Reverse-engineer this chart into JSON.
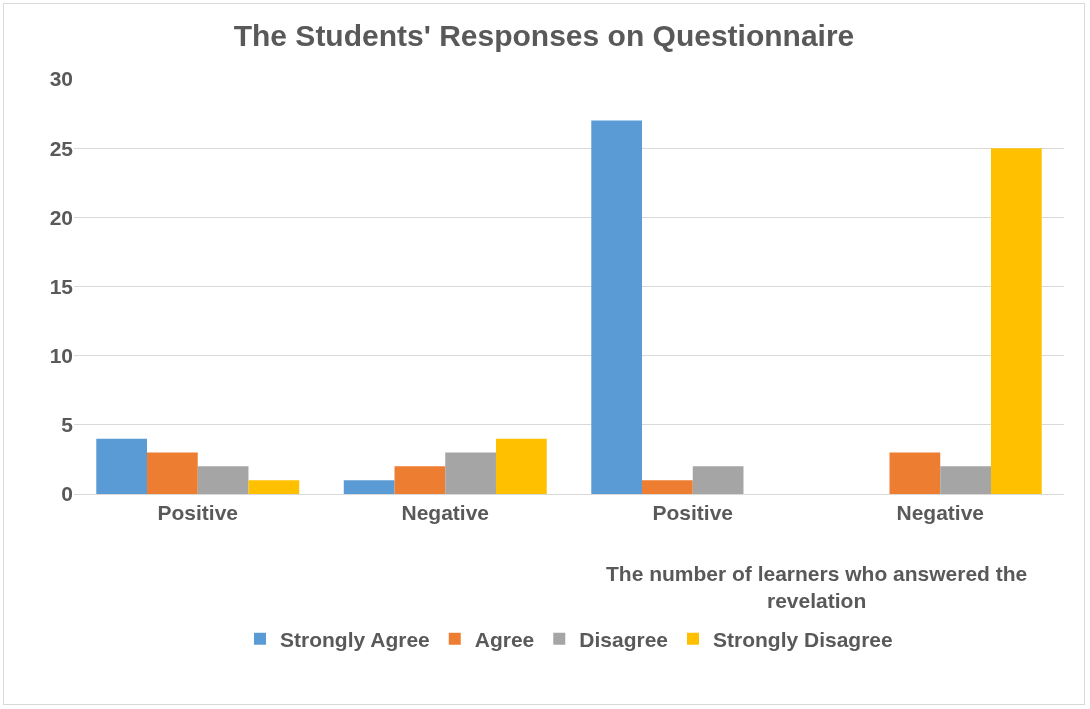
{
  "chart_data": {
    "type": "bar",
    "title": "The Students' Responses on Questionnaire",
    "categories": [
      "Positive",
      "Negative",
      "Positive",
      "Negative"
    ],
    "series": [
      {
        "name": "Strongly Agree",
        "color": "#5b9bd5",
        "values": [
          4,
          1,
          27,
          0
        ]
      },
      {
        "name": "Agree",
        "color": "#ed7d31",
        "values": [
          3,
          2,
          1,
          3
        ]
      },
      {
        "name": "Disagree",
        "color": "#a5a5a5",
        "values": [
          2,
          3,
          2,
          2
        ]
      },
      {
        "name": "Strongly Disagree",
        "color": "#ffc000",
        "values": [
          1,
          4,
          0,
          25
        ]
      }
    ],
    "annotations": [
      "The number of learners who answered the revelation"
    ],
    "ylim": [
      0,
      30
    ],
    "yticks": [
      0,
      5,
      10,
      15,
      20,
      25,
      30
    ],
    "grid": "y",
    "legend": "bottom"
  }
}
